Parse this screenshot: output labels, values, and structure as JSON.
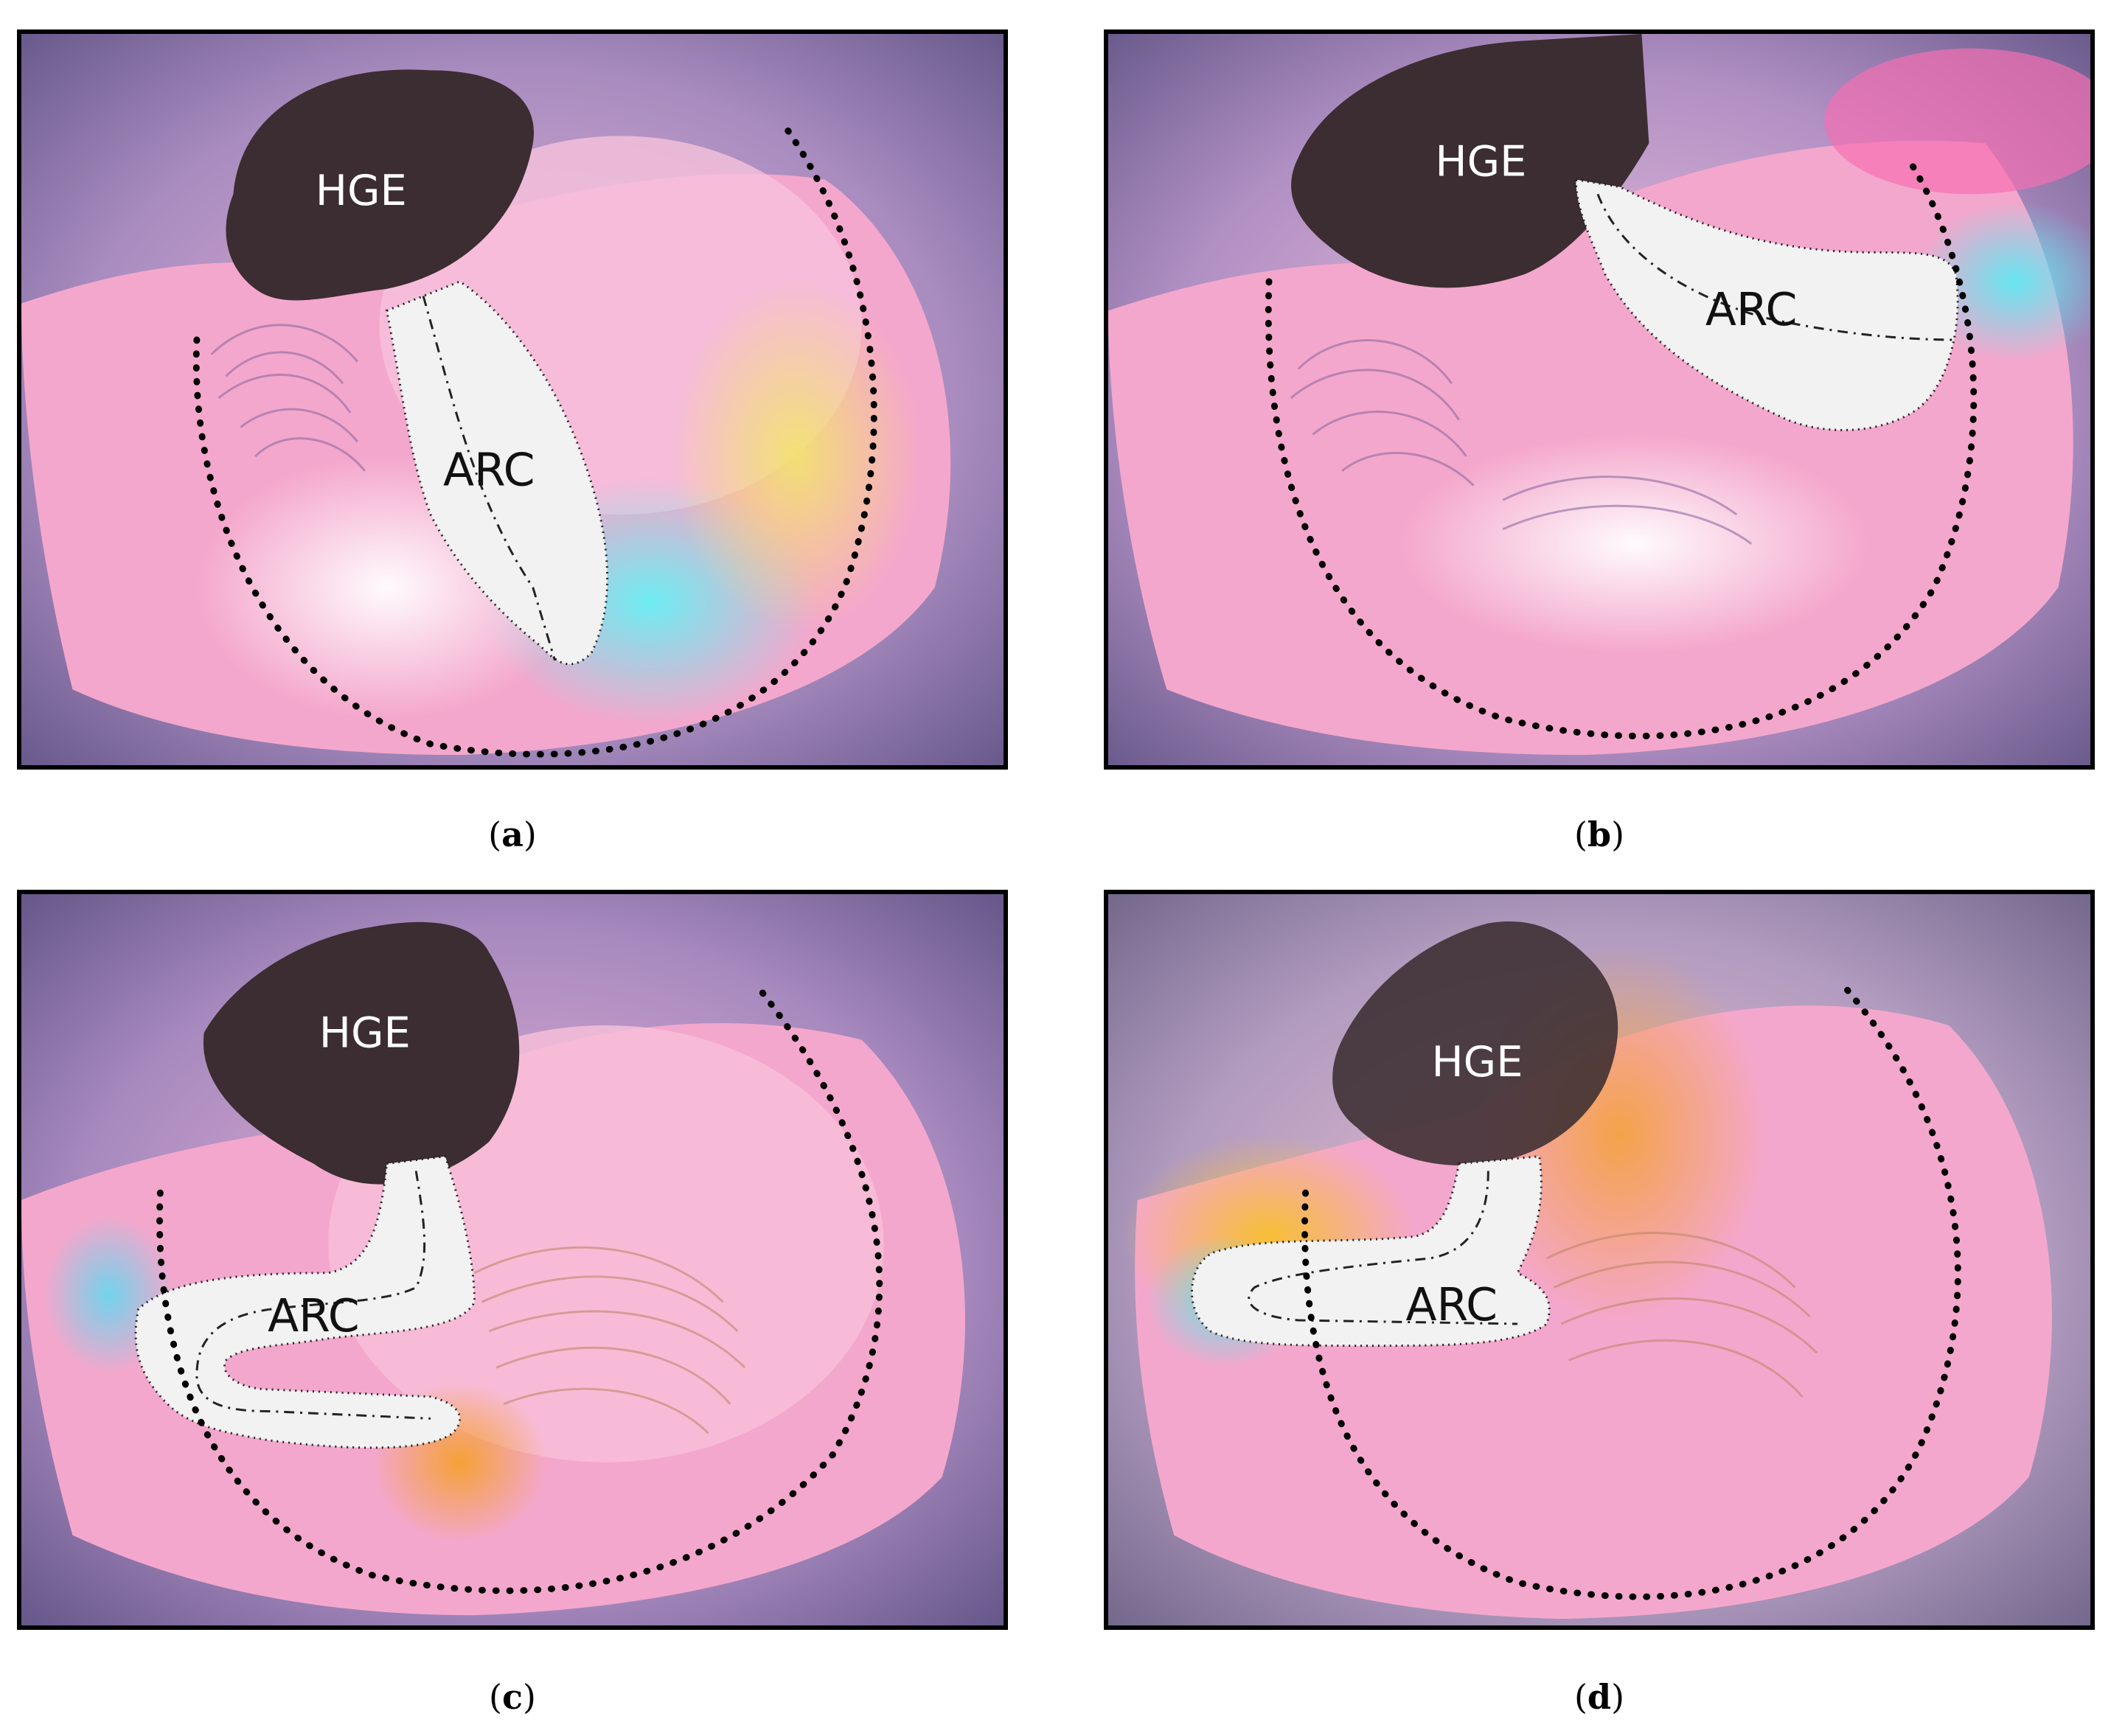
{
  "panels": [
    {
      "id": "a",
      "caption_letter": "a",
      "hge_label": "HGE",
      "arc_label": "ARC"
    },
    {
      "id": "b",
      "caption_letter": "b",
      "hge_label": "HGE",
      "arc_label": "ARC"
    },
    {
      "id": "c",
      "caption_letter": "c",
      "hge_label": "HGE",
      "arc_label": "ARC"
    },
    {
      "id": "d",
      "caption_letter": "d",
      "hge_label": "HGE",
      "arc_label": "ARC"
    }
  ],
  "colors": {
    "frame": "#000000",
    "background_purple": "#7a6a9a",
    "tissue_pink": "#f29ac4",
    "hge_dark": "#3a2c30",
    "arc_fill": "#f2f2f2",
    "cyan_glow": "#5fe6f0",
    "yellow_glow": "#f4d36a",
    "orange_glow": "#f3a93a"
  }
}
